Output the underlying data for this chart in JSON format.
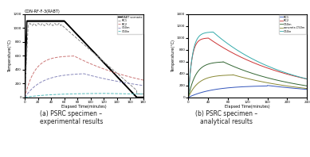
{
  "fig_width": 3.89,
  "fig_height": 1.98,
  "background_color": "#ffffff",
  "caption_a": "(a) PSRC specimen –\nexperimental results",
  "caption_b": "(b) PSRC specimen –\nanalytical results",
  "chart_a": {
    "title": "CON-RF-F-3(RABT)",
    "xlabel": "Elapsed Time(minutes)",
    "ylabel": "Temperature(°C)",
    "xlim": [
      0,
      180
    ],
    "ylim": [
      0,
      1200
    ],
    "yticks": [
      0,
      200,
      400,
      600,
      800,
      1000,
      1200
    ],
    "xticks": [
      0,
      20,
      40,
      60,
      80,
      100,
      120,
      140,
      160,
      180
    ],
    "legend_entries": [
      "RABT scenario",
      "RC1",
      "RC2",
      "C50m",
      "C50in"
    ],
    "legend_colors": [
      "#000000",
      "#888888",
      "#cc7777",
      "#8888bb",
      "#55bbbb"
    ],
    "rabt_color": "#000000",
    "rc1_color": "#888888",
    "rc2_color": "#cc7777",
    "c50m_color": "#8888bb",
    "c50in_color": "#55bbbb"
  },
  "chart_b": {
    "xlabel": "Elapsed Time(minutes)",
    "ylabel": "Temperature(°C)",
    "xlim": [
      0,
      240
    ],
    "ylim": [
      0,
      1400
    ],
    "yticks": [
      0,
      200,
      400,
      600,
      800,
      1000,
      1200,
      1400
    ],
    "xticks": [
      0,
      40,
      80,
      120,
      160,
      200,
      240
    ],
    "legend_entries": [
      "RC1",
      "RC2",
      "C50m",
      "concrete-C50m",
      "C50in"
    ],
    "rc1_color": "#3355bb",
    "rc2_color": "#cc3333",
    "c50m_color": "#336633",
    "conc50m_color": "#888833",
    "c50in_color": "#33aaaa"
  }
}
